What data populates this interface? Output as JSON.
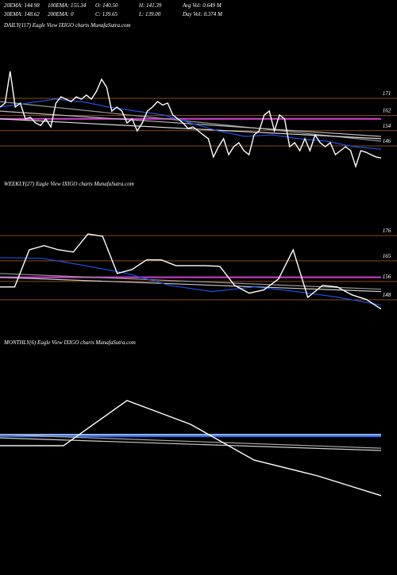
{
  "header": {
    "stats": [
      [
        "20EMA: 144.98",
        "100EMA: 155.34",
        "O: 140.50",
        "H: 141.39",
        "Avg Vol: 0.649  M"
      ],
      [
        "30EMA: 148.62",
        "200EMA: 0",
        "C: 139.65",
        "L: 139.00",
        "Day Vol: 0.374  M"
      ]
    ]
  },
  "chart_data": [
    {
      "type": "line",
      "title": "DAILY(117) Eagle  View  IXIGO charts MunafaSutra.com",
      "ylim": [
        131,
        206
      ],
      "yticks": [
        171,
        162,
        154,
        146
      ],
      "tick_color": "#8a4a1a",
      "hlines": [
        {
          "value": 160.2,
          "color": "#d040d0"
        }
      ],
      "series": [
        {
          "color": "#999999",
          "values": [
            169.3,
            148.5
          ]
        },
        {
          "color": "#bbbbbb",
          "values": [
            164.3,
            151
          ]
        },
        {
          "color": "#dddddd",
          "values": [
            160.2,
            149.8
          ]
        },
        {
          "color": "#1f4fe0",
          "values": [
            166.4,
            168.5,
            170.6,
            169.3,
            166.4,
            164.3,
            162.3,
            158.1,
            153.9,
            151,
            151.8,
            149.8,
            148.5,
            145.6,
            144.3
          ]
        },
        {
          "color": "#ffffff",
          "values": [
            166.4,
            168.5,
            185.2,
            166.4,
            168.5,
            160.2,
            161,
            158.1,
            156.8,
            160.2,
            156,
            168.5,
            171.8,
            170.6,
            169.3,
            171.8,
            170.6,
            172.7,
            170.6,
            174.8,
            181,
            176.8,
            164.3,
            166.4,
            164.3,
            158.1,
            160.2,
            153.9,
            158.1,
            164.3,
            166.4,
            169.3,
            167.5,
            168.5,
            162.3,
            160.2,
            158.1,
            155.2,
            156,
            153.9,
            151.8,
            149.8,
            140.2,
            145.6,
            149.8,
            141.4,
            145.6,
            147.7,
            143.5,
            141.4,
            151.8,
            153.9,
            162.3,
            164.3,
            153.9,
            162.3,
            160.2,
            145.6,
            147.7,
            143.5,
            149.8,
            143.5,
            151.8,
            147.7,
            145.6,
            147.7,
            141.4,
            143.5,
            145.6,
            143.5,
            135.2,
            143.5,
            142.7,
            141.4,
            140.2,
            139.65
          ]
        }
      ]
    },
    {
      "type": "line",
      "title": "WEEKLY(27) Eagle  View  IXIGO charts MunafaSutra.com",
      "ylim": [
        133.5,
        195.7
      ],
      "yticks": [
        176,
        165,
        156,
        148
      ],
      "tick_color": "#8a4a1a",
      "hlines": [
        {
          "value": 157.8,
          "color": "#d040d0"
        }
      ],
      "series": [
        {
          "color": "#999999",
          "values": [
            159.5,
            152.6
          ]
        },
        {
          "color": "#cccccc",
          "values": [
            157.8,
            151.6
          ]
        },
        {
          "color": "#1f4fe0",
          "values": [
            166.4,
            166.1,
            162.9,
            159.5,
            154.3,
            151.6,
            153.6,
            151.6,
            149.1,
            145.7
          ]
        },
        {
          "color": "#ffffff",
          "values": [
            153.6,
            153.6,
            169.8,
            171.6,
            169.8,
            168.8,
            176.7,
            175.7,
            159.5,
            161.2,
            165.4,
            165.4,
            162.9,
            162.9,
            162.9,
            162.6,
            154.3,
            150.9,
            152.3,
            157.1,
            169.8,
            149.1,
            154.3,
            153.6,
            150.2,
            148.1,
            144.0
          ]
        }
      ]
    },
    {
      "type": "line",
      "title": "MONTHLY(6) Eagle  View  IXIGO charts MunafaSutra.com",
      "ylim": [
        120,
        210
      ],
      "hlines": [
        {
          "value": 171.9,
          "color": "#3a6ff0"
        },
        {
          "value": 172.6,
          "color": "#8fb0ff"
        }
      ],
      "series": [
        {
          "color": "#aaaaaa",
          "values": [
            172.6,
            166.7
          ]
        },
        {
          "color": "#cccccc",
          "values": [
            171.2,
            165.7
          ]
        },
        {
          "color": "#ffffff",
          "values": [
            167.8,
            167.8,
            187.5,
            177.1,
            161.5,
            154.6,
            146.0
          ]
        }
      ]
    }
  ]
}
